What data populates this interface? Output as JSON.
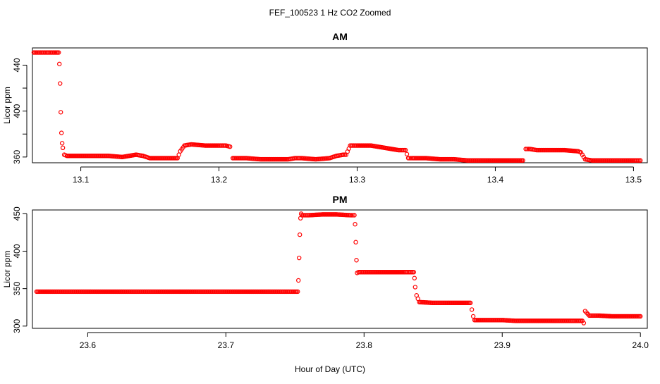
{
  "figure": {
    "title": "FEF_100523  1 Hz CO2 Zoomed",
    "xlabel": "Hour of Day (UTC)"
  },
  "colors": {
    "points": "#ff0000",
    "axes": "#000000",
    "background": "#ffffff"
  },
  "chart_data": [
    {
      "type": "scatter",
      "title": "AM",
      "ylabel": "Licor ppm",
      "xlim": [
        13.065,
        13.51
      ],
      "ylim": [
        355,
        455
      ],
      "xticks": [
        13.1,
        13.2,
        13.3,
        13.4,
        13.5
      ],
      "xtick_labels": [
        "13.1",
        "13.2",
        "13.3",
        "13.4",
        "13.5"
      ],
      "yticks": [
        360,
        380,
        400,
        420,
        440
      ],
      "ytick_labels": [
        "360",
        "",
        "400",
        "",
        "440"
      ],
      "grid": false,
      "marker": "open-circle",
      "series": [
        {
          "x": [
            13.066,
            13.07,
            13.075,
            13.08,
            13.084,
            13.0845,
            13.085,
            13.0855,
            13.086,
            13.0865,
            13.087,
            13.088,
            13.09,
            13.1,
            13.11,
            13.12,
            13.13,
            13.14,
            13.145,
            13.15,
            13.16,
            13.17,
            13.172,
            13.175,
            13.18,
            13.19,
            13.2,
            13.205,
            13.208,
            13.21,
            13.22,
            13.23,
            13.24,
            13.25,
            13.255,
            13.26,
            13.27,
            13.28,
            13.285,
            13.29,
            13.292,
            13.295,
            13.3,
            13.31,
            13.32,
            13.33,
            13.335,
            13.337,
            13.34,
            13.35,
            13.36,
            13.37,
            13.38,
            13.39,
            13.4,
            13.41,
            13.42,
            13.422,
            13.425,
            13.43,
            13.44,
            13.45,
            13.46,
            13.462,
            13.465,
            13.47,
            13.48,
            13.49,
            13.5,
            13.505
          ],
          "y": [
            451,
            451,
            451,
            451,
            451,
            441,
            424,
            399,
            381,
            372,
            368,
            362,
            361,
            361,
            361,
            361,
            360,
            362,
            361,
            359,
            359,
            359,
            365,
            370,
            371,
            370,
            370,
            370,
            369,
            359,
            359,
            358,
            358,
            358,
            359,
            359,
            358,
            359,
            361,
            362,
            362,
            370,
            370,
            370,
            368,
            366,
            366,
            359,
            359,
            359,
            358,
            358,
            357,
            357,
            357,
            357,
            357,
            367,
            367,
            366,
            366,
            366,
            365,
            364,
            358,
            357,
            357,
            357,
            357,
            357
          ]
        }
      ]
    },
    {
      "type": "scatter",
      "title": "PM",
      "ylabel": "Licor ppm",
      "xlim": [
        23.56,
        24.005
      ],
      "ylim": [
        297,
        455
      ],
      "xticks": [
        23.6,
        23.7,
        23.8,
        23.9,
        24.0
      ],
      "xtick_labels": [
        "23.6",
        "23.7",
        "23.8",
        "23.9",
        "24.0"
      ],
      "yticks": [
        300,
        350,
        400,
        450
      ],
      "ytick_labels": [
        "300",
        "350",
        "400",
        "450"
      ],
      "grid": false,
      "marker": "open-circle",
      "series": [
        {
          "x": [
            23.563,
            23.58,
            23.6,
            23.62,
            23.64,
            23.66,
            23.68,
            23.7,
            23.72,
            23.74,
            23.752,
            23.7525,
            23.753,
            23.7535,
            23.754,
            23.7545,
            23.755,
            23.76,
            23.77,
            23.78,
            23.79,
            23.793,
            23.7935,
            23.794,
            23.7945,
            23.795,
            23.796,
            23.8,
            23.81,
            23.82,
            23.83,
            23.836,
            23.8365,
            23.837,
            23.838,
            23.84,
            23.85,
            23.86,
            23.87,
            23.877,
            23.878,
            23.879,
            23.88,
            23.89,
            23.9,
            23.91,
            23.92,
            23.93,
            23.94,
            23.95,
            23.958,
            23.959,
            23.96,
            23.961,
            23.963,
            23.97,
            23.98,
            23.99,
            24.0
          ],
          "y": [
            346,
            346,
            346,
            346,
            346,
            346,
            346,
            346,
            346,
            346,
            346,
            361,
            391,
            422,
            444,
            450,
            448,
            448,
            449,
            449,
            448,
            448,
            436,
            412,
            388,
            371,
            372,
            372,
            372,
            372,
            372,
            372,
            364,
            352,
            341,
            332,
            331,
            331,
            331,
            331,
            322,
            313,
            308,
            308,
            308,
            307,
            307,
            307,
            307,
            307,
            307,
            304,
            320,
            318,
            314,
            314,
            313,
            313,
            313
          ]
        }
      ]
    }
  ]
}
